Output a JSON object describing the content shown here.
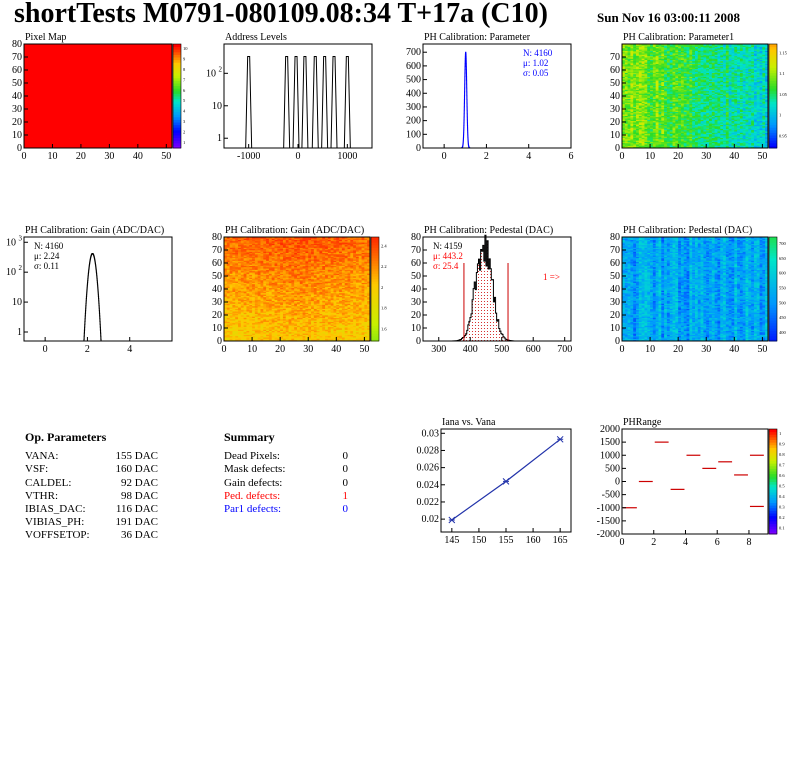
{
  "header": {
    "title": "shortTests M0791-080109.08:34 T+17a (C10)",
    "date": "Sun Nov 16 03:00:11 2008"
  },
  "colors": {
    "red": "#ff0000",
    "blue": "#0000ff",
    "marker": "#2222aa",
    "frame": "#000000"
  },
  "charts": [
    {
      "id": "pixel-map",
      "type": "heatmap",
      "title": "Pixel Map",
      "xlim": [
        0,
        52
      ],
      "ylim": [
        0,
        80
      ],
      "xticks": [
        0,
        10,
        20,
        30,
        40,
        50
      ],
      "yticks": [
        0,
        10,
        20,
        30,
        40,
        50,
        60,
        70,
        80
      ],
      "fill": "uniform-red",
      "zscale": {
        "ticks": [
          "1",
          "2",
          "3",
          "4",
          "5",
          "6",
          "7",
          "8",
          "9",
          "10"
        ]
      }
    },
    {
      "id": "address-levels",
      "type": "histogram-log",
      "title": "Address Levels",
      "xlim": [
        -1500,
        1500
      ],
      "xticks": [
        -1000,
        0,
        1000
      ],
      "ylog": [
        0.5,
        800
      ],
      "yticks": [
        {
          "v": 1,
          "label": "1"
        },
        {
          "v": 10,
          "label": "10"
        },
        {
          "v": 100,
          "label": "10^2"
        }
      ],
      "peaks": [
        -1000,
        -230,
        -40,
        140,
        350,
        540,
        730,
        1000
      ],
      "peak_height": 330
    },
    {
      "id": "ph-par",
      "type": "histogram",
      "title": "PH Calibration: Parameter",
      "xlim": [
        -1,
        6
      ],
      "ylim": [
        0,
        760
      ],
      "xticks": [
        0,
        2,
        4,
        6
      ],
      "yticks": [
        0,
        100,
        200,
        300,
        400,
        500,
        600,
        700
      ],
      "mean": 1.02,
      "sigma": 0.05,
      "peak": 700,
      "stats": {
        "N": "N: 4160",
        "mu": "μ: 1.02",
        "sigma": "σ: 0.05",
        "color": "blue"
      }
    },
    {
      "id": "ph-par1",
      "type": "heatmap",
      "title": "PH Calibration: Parameter1",
      "xlim": [
        0,
        52
      ],
      "ylim": [
        0,
        80
      ],
      "xticks": [
        0,
        10,
        20,
        30,
        40,
        50
      ],
      "yticks": [
        0,
        10,
        20,
        30,
        40,
        50,
        60,
        70
      ],
      "zscale": {
        "ticks": [
          "0.95",
          "1",
          "1.05",
          "1.1",
          "1.15"
        ]
      },
      "palette_range": [
        0.15,
        0.85
      ],
      "trend": "x"
    },
    {
      "id": "gain-hist",
      "type": "histogram-log",
      "title": "PH Calibration: Gain (ADC/DAC)",
      "xlim": [
        -1,
        6
      ],
      "xticks": [
        0,
        2,
        4
      ],
      "ylog": [
        0.5,
        1500
      ],
      "yticks": [
        {
          "v": 1,
          "label": "1"
        },
        {
          "v": 10,
          "label": "10"
        },
        {
          "v": 100,
          "label": "10^2"
        },
        {
          "v": 1000,
          "label": "10^3"
        }
      ],
      "mean": 2.24,
      "sigma": 0.11,
      "peak": 420,
      "stats": {
        "N": "N: 4160",
        "mu": "μ: 2.24",
        "sigma": "σ: 0.11",
        "color": "black"
      }
    },
    {
      "id": "gain-map",
      "type": "heatmap",
      "title": "PH Calibration: Gain (ADC/DAC)",
      "xlim": [
        0,
        52
      ],
      "ylim": [
        0,
        80
      ],
      "xticks": [
        0,
        10,
        20,
        30,
        40,
        50
      ],
      "yticks": [
        0,
        10,
        20,
        30,
        40,
        50,
        60,
        70,
        80
      ],
      "zscale": {
        "ticks": [
          "1.6",
          "1.8",
          "2",
          "2.2",
          "2.4"
        ]
      },
      "palette_range": [
        0.65,
        0.96
      ],
      "trend": "y"
    },
    {
      "id": "ped-hist",
      "type": "histogram",
      "title": "PH Calibration: Pedestal (DAC)",
      "xlim": [
        250,
        720
      ],
      "ylim": [
        0,
        80
      ],
      "xticks": [
        300,
        400,
        500,
        600,
        700
      ],
      "yticks": [
        0,
        10,
        20,
        30,
        40,
        50,
        60,
        70,
        80
      ],
      "mean": 443.2,
      "sigma": 25.4,
      "peak": 75,
      "cut_lines": [
        380,
        520
      ],
      "overflow_label": "1 =>",
      "stats": {
        "N": "N: 4159",
        "mu": "μ: 443.2",
        "sigma": "σ: 25.4",
        "color": "red"
      }
    },
    {
      "id": "ped-map",
      "type": "heatmap",
      "title": "PH Calibration: Pedestal (DAC)",
      "xlim": [
        0,
        52
      ],
      "ylim": [
        0,
        80
      ],
      "xticks": [
        0,
        10,
        20,
        30,
        40,
        50
      ],
      "yticks": [
        0,
        10,
        20,
        30,
        40,
        50,
        60,
        70,
        80
      ],
      "zscale": {
        "ticks": [
          "400",
          "450",
          "500",
          "550",
          "600",
          "650",
          "700"
        ]
      },
      "palette_range": [
        0.18,
        0.52
      ],
      "trend": "stripes"
    },
    {
      "id": "iana-vana",
      "type": "line",
      "title": "Iana vs. Vana",
      "xlim": [
        143,
        167
      ],
      "ylim": [
        0.0185,
        0.0305
      ],
      "xticks": [
        145,
        150,
        155,
        160,
        165
      ],
      "yticks": [
        0.02,
        0.022,
        0.024,
        0.026,
        0.028,
        0.03
      ],
      "x": [
        145,
        155,
        165
      ],
      "y": [
        0.0199,
        0.0244,
        0.0293
      ]
    },
    {
      "id": "phrange",
      "type": "scatter",
      "title": "PHRange",
      "xlim": [
        0,
        9.2
      ],
      "ylim": [
        -2000,
        2000
      ],
      "xticks": [
        0,
        2,
        4,
        6,
        8
      ],
      "yticks": [
        -2000,
        -1500,
        -1000,
        -500,
        0,
        500,
        1000,
        1500,
        2000
      ],
      "segments": [
        [
          0,
          1,
          -1000
        ],
        [
          1,
          2,
          0
        ],
        [
          2,
          3,
          1500
        ],
        [
          3,
          4,
          -300
        ],
        [
          4,
          5,
          1000
        ],
        [
          5,
          6,
          500
        ],
        [
          6,
          7,
          750
        ],
        [
          7,
          8,
          250
        ],
        [
          8,
          9,
          1000
        ],
        [
          8,
          9,
          -950
        ]
      ],
      "zscale": {
        "ticks": [
          "0.1",
          "0.2",
          "0.3",
          "0.4",
          "0.5",
          "0.6",
          "0.7",
          "0.8",
          "0.9",
          "1"
        ]
      }
    }
  ],
  "op_params": {
    "title": "Op. Parameters",
    "rows": [
      {
        "name": "VANA:",
        "value": "155 DAC"
      },
      {
        "name": "VSF:",
        "value": "160 DAC"
      },
      {
        "name": "CALDEL:",
        "value": "92 DAC"
      },
      {
        "name": "VTHR:",
        "value": "98 DAC"
      },
      {
        "name": "IBIAS_DAC:",
        "value": "116 DAC"
      },
      {
        "name": "VIBIAS_PH:",
        "value": "191 DAC"
      },
      {
        "name": "VOFFSETOP:",
        "value": "36 DAC"
      }
    ]
  },
  "summary": {
    "title": "Summary",
    "rows": [
      {
        "name": "Dead Pixels:",
        "value": "0",
        "color": "#000000"
      },
      {
        "name": "Mask defects:",
        "value": "0",
        "color": "#000000"
      },
      {
        "name": "Gain defects:",
        "value": "0",
        "color": "#000000"
      },
      {
        "name": "Ped. defects:",
        "value": "1",
        "color": "#ff0000"
      },
      {
        "name": "Par1 defects:",
        "value": "0",
        "color": "#0000ff"
      }
    ]
  }
}
